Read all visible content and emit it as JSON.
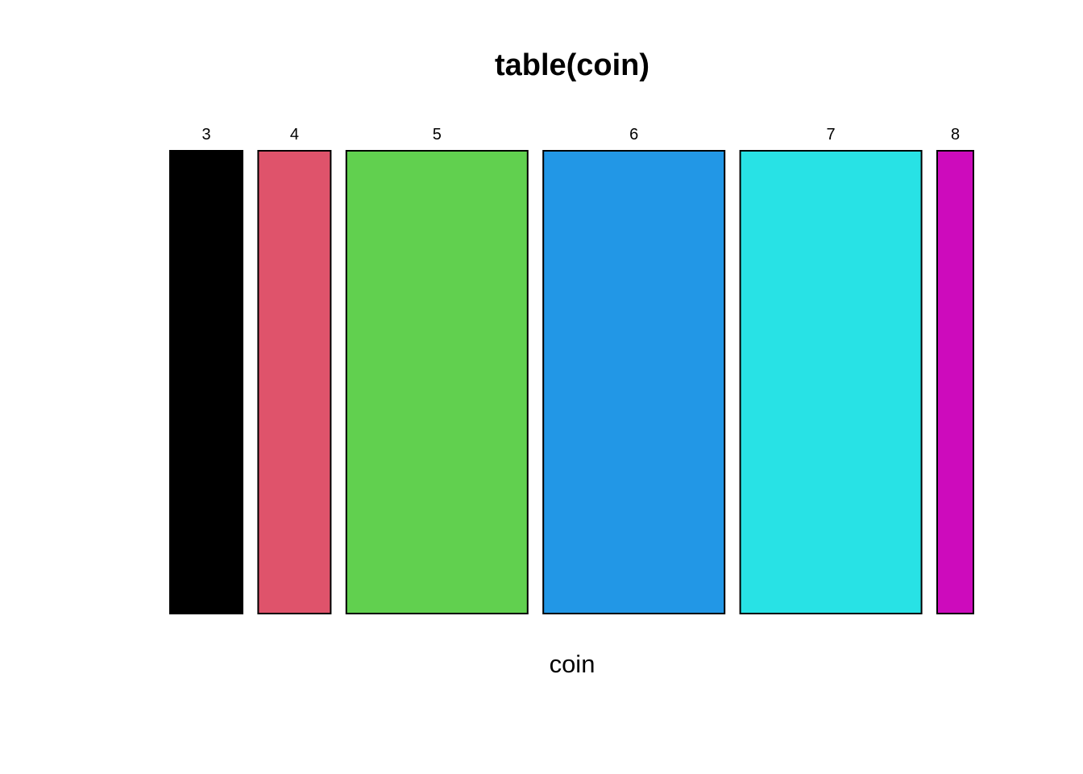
{
  "chart_data": {
    "type": "mosaic",
    "title": "table(coin)",
    "xlabel": "coin",
    "ylabel": "",
    "categories": [
      "3",
      "4",
      "5",
      "6",
      "7",
      "8"
    ],
    "values": [
      4,
      4,
      10,
      10,
      10,
      2
    ],
    "colors": [
      "#000000",
      "#DF536B",
      "#61D04F",
      "#2297E6",
      "#28E2E5",
      "#CD0BBC"
    ],
    "grid": false,
    "legend": "none"
  }
}
